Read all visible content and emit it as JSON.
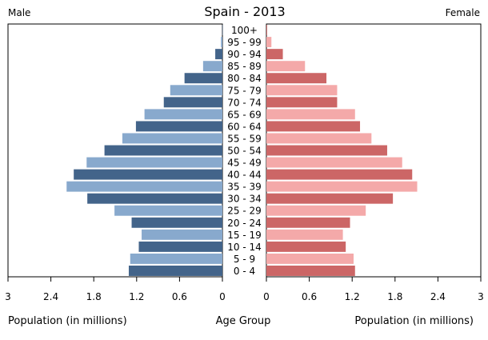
{
  "chart_data": {
    "type": "bar",
    "title": "Spain - 2013",
    "left_label": "Male",
    "right_label": "Female",
    "xlabel_left": "Population (in millions)",
    "xlabel_center": "Age Group",
    "xlabel_right": "Population (in millions)",
    "xlim": [
      0,
      3
    ],
    "ticks_left": [
      "3",
      "2.4",
      "1.8",
      "1.2",
      "0.6",
      "0"
    ],
    "ticks_right": [
      "0",
      "0.6",
      "1.2",
      "1.8",
      "2.4",
      "3"
    ],
    "tick_values": [
      0,
      0.6,
      1.2,
      1.8,
      2.4,
      3
    ],
    "categories": [
      "0 - 4",
      "5 - 9",
      "10 - 14",
      "15 - 19",
      "20 - 24",
      "25 - 29",
      "30 - 34",
      "35 - 39",
      "40 - 44",
      "45 - 49",
      "50 - 54",
      "55 - 59",
      "60 - 64",
      "65 - 69",
      "70 - 74",
      "75 - 79",
      "80 - 84",
      "85 - 89",
      "90 - 94",
      "95 - 99",
      "100+"
    ],
    "series": [
      {
        "name": "Male",
        "values": [
          1.31,
          1.29,
          1.17,
          1.13,
          1.27,
          1.51,
          1.89,
          2.18,
          2.08,
          1.9,
          1.65,
          1.4,
          1.21,
          1.09,
          0.82,
          0.73,
          0.53,
          0.27,
          0.1,
          0.02,
          0.002
        ]
      },
      {
        "name": "Female",
        "values": [
          1.24,
          1.22,
          1.11,
          1.07,
          1.17,
          1.39,
          1.77,
          2.11,
          2.04,
          1.9,
          1.69,
          1.47,
          1.31,
          1.24,
          0.99,
          0.99,
          0.84,
          0.54,
          0.23,
          0.07,
          0.01
        ]
      }
    ],
    "colors": {
      "male_dark": "#43648a",
      "male_light": "#88a9cd",
      "female_dark": "#cc6666",
      "female_light": "#f4a9a9",
      "frame": "#000000"
    },
    "grid": false
  }
}
